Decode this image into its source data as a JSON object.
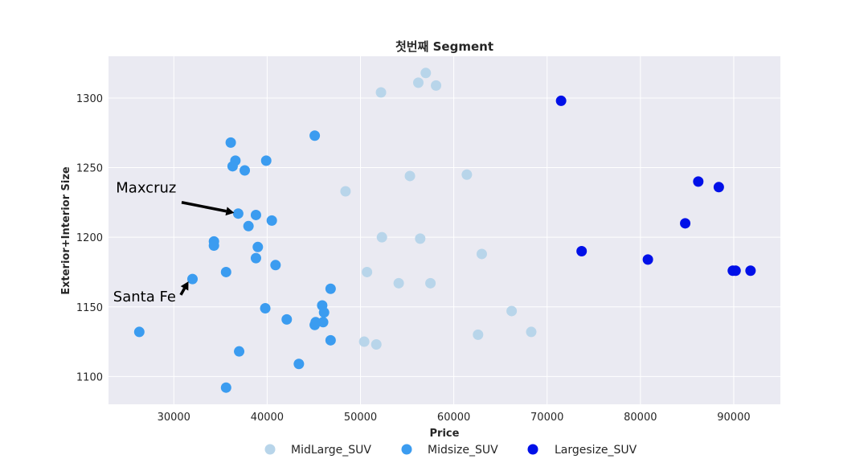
{
  "chart_data": {
    "type": "scatter",
    "title": "첫번째 Segment",
    "xlabel": "Price",
    "ylabel": "Exterior+Interior Size",
    "xlim": [
      23000,
      95000
    ],
    "ylim": [
      1080,
      1330
    ],
    "xticks": [
      30000,
      40000,
      50000,
      60000,
      70000,
      80000,
      90000
    ],
    "yticks": [
      1100,
      1150,
      1200,
      1250,
      1300
    ],
    "grid": true,
    "legend_position": "bottom-center",
    "series": [
      {
        "name": "MidLarge_SUV",
        "color": "#b8d5ea",
        "points": [
          [
            52200,
            1304
          ],
          [
            56200,
            1311
          ],
          [
            57000,
            1318
          ],
          [
            58100,
            1309
          ],
          [
            48400,
            1233
          ],
          [
            55300,
            1244
          ],
          [
            61400,
            1245
          ],
          [
            52300,
            1200
          ],
          [
            56400,
            1199
          ],
          [
            63000,
            1188
          ],
          [
            50700,
            1175
          ],
          [
            54100,
            1167
          ],
          [
            57500,
            1167
          ],
          [
            66200,
            1147
          ],
          [
            68300,
            1132
          ],
          [
            62600,
            1130
          ],
          [
            50400,
            1125
          ],
          [
            51700,
            1123
          ]
        ]
      },
      {
        "name": "Midsize_SUV",
        "color": "#3b9cf0",
        "points": [
          [
            45100,
            1273
          ],
          [
            36100,
            1268
          ],
          [
            36600,
            1255
          ],
          [
            39900,
            1255
          ],
          [
            36300,
            1251
          ],
          [
            37600,
            1248
          ],
          [
            36900,
            1217
          ],
          [
            38800,
            1216
          ],
          [
            40500,
            1212
          ],
          [
            38000,
            1208
          ],
          [
            34300,
            1197
          ],
          [
            34300,
            1194
          ],
          [
            39000,
            1193
          ],
          [
            38800,
            1185
          ],
          [
            40900,
            1180
          ],
          [
            35600,
            1175
          ],
          [
            32000,
            1170
          ],
          [
            46800,
            1163
          ],
          [
            45900,
            1151
          ],
          [
            46100,
            1146
          ],
          [
            39800,
            1149
          ],
          [
            42100,
            1141
          ],
          [
            45200,
            1139
          ],
          [
            46000,
            1139
          ],
          [
            45100,
            1137
          ],
          [
            26300,
            1132
          ],
          [
            46800,
            1126
          ],
          [
            37000,
            1118
          ],
          [
            43400,
            1109
          ],
          [
            35600,
            1092
          ]
        ]
      },
      {
        "name": "Largesize_SUV",
        "color": "#0010e8",
        "points": [
          [
            71500,
            1298
          ],
          [
            86200,
            1240
          ],
          [
            88400,
            1236
          ],
          [
            84800,
            1210
          ],
          [
            73700,
            1190
          ],
          [
            80800,
            1184
          ],
          [
            91800,
            1176
          ],
          [
            89900,
            1176
          ],
          [
            90200,
            1176
          ]
        ]
      }
    ],
    "annotations": [
      {
        "text": "Maxcruz",
        "point": [
          36900,
          1217
        ],
        "text_pos": [
          23800,
          1232
        ]
      },
      {
        "text": "Santa Fe",
        "point": [
          32000,
          1170
        ],
        "text_pos": [
          23500,
          1154
        ]
      }
    ]
  }
}
